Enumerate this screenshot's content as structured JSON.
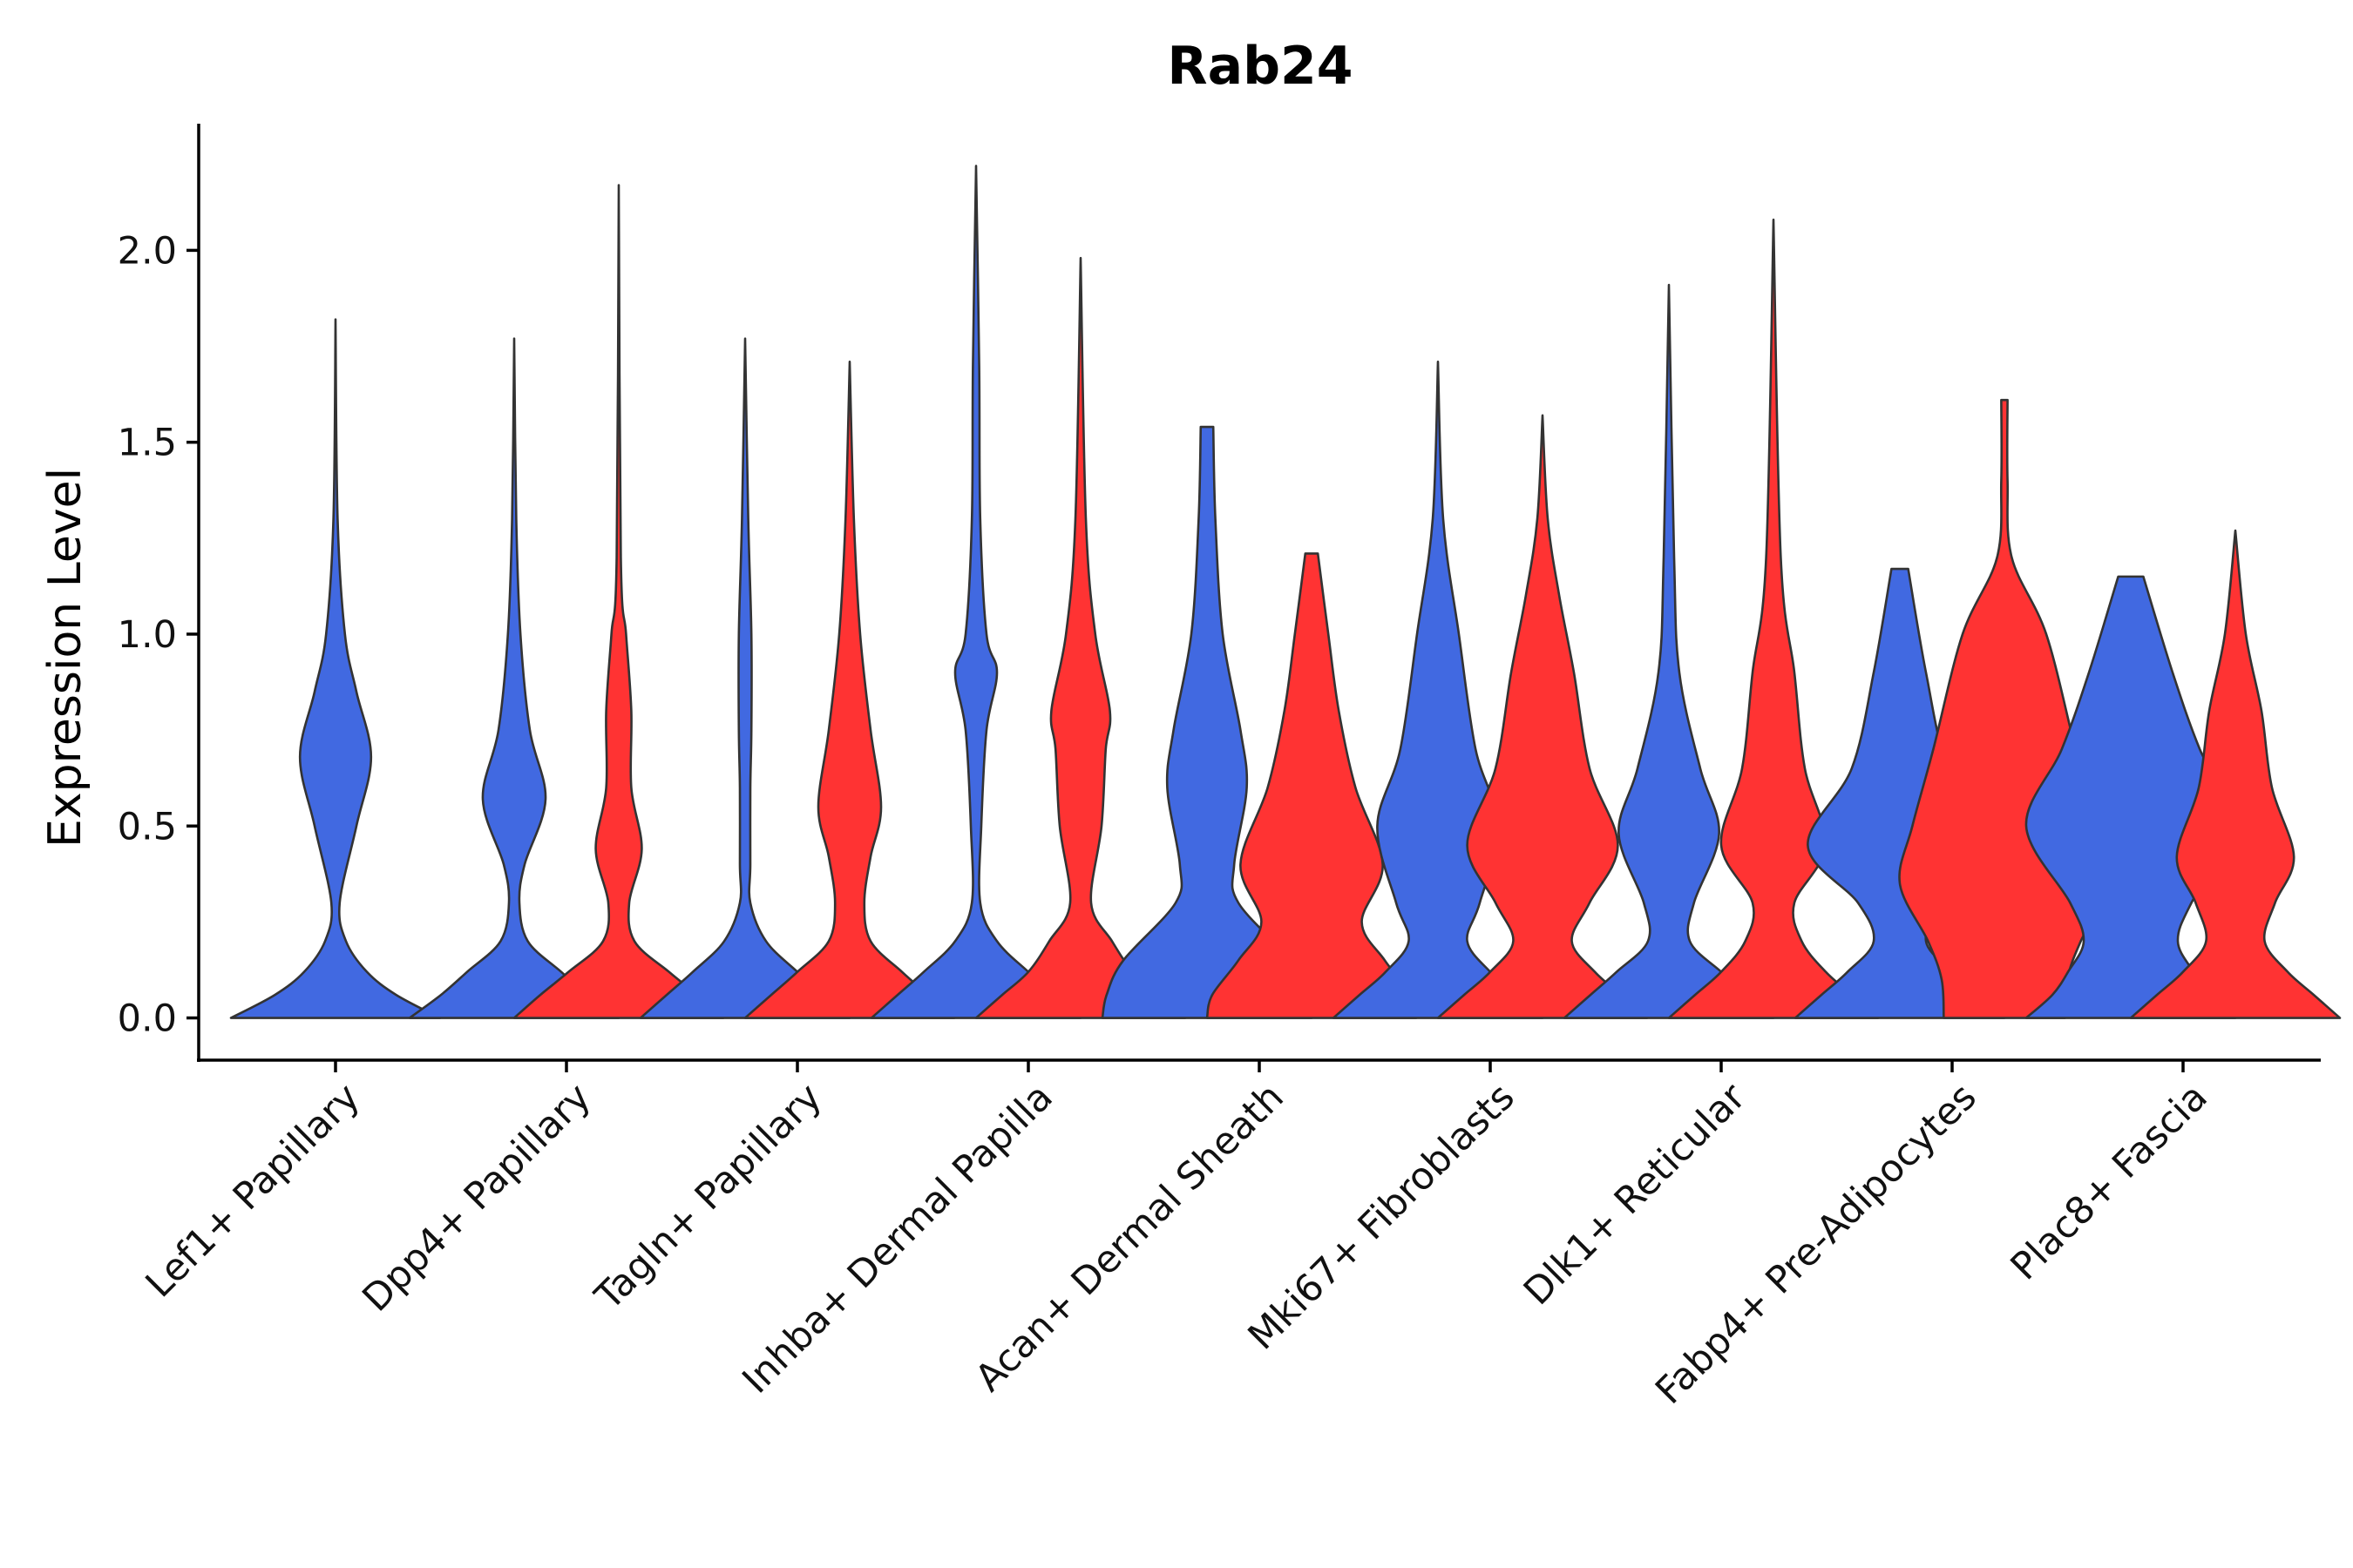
{
  "chart_data": {
    "type": "violin",
    "title": "Rab24",
    "xlabel": "",
    "ylabel": "Expression Level",
    "ylim": [
      -0.11,
      2.33
    ],
    "yticks": [
      0.0,
      0.5,
      1.0,
      1.5,
      2.0
    ],
    "ytick_labels": [
      "0.0",
      "0.5",
      "1.0",
      "1.5",
      "2.0"
    ],
    "categories": [
      "Lef1+ Papillary",
      "Dpp4+ Papillary",
      "Tagln+ Papillary",
      "Inhba+ Dermal Papilla",
      "Acan+ Dermal Sheath",
      "Mki67+ Fibroblasts",
      "Dlk1+ Reticular",
      "Fabp4+ Pre-Adipocytes",
      "Plac8+ Fascia"
    ],
    "groups": [
      {
        "name": "group-1",
        "color": "#4169E1"
      },
      {
        "name": "group-2",
        "color": "#FF3333"
      }
    ],
    "violins": [
      {
        "category": 0,
        "group": 0,
        "max": 1.82,
        "profile": [
          [
            0.0,
            1.0
          ],
          [
            0.06,
            0.58
          ],
          [
            0.12,
            0.3
          ],
          [
            0.2,
            0.1
          ],
          [
            0.3,
            0.04
          ],
          [
            0.5,
            0.2
          ],
          [
            0.68,
            0.34
          ],
          [
            0.85,
            0.2
          ],
          [
            1.0,
            0.09
          ],
          [
            1.3,
            0.02
          ],
          [
            1.82,
            0
          ]
        ]
      },
      {
        "category": 1,
        "group": 0,
        "max": 1.77,
        "profile": [
          [
            0.0,
            1.0
          ],
          [
            0.06,
            0.7
          ],
          [
            0.12,
            0.45
          ],
          [
            0.2,
            0.13
          ],
          [
            0.3,
            0.05
          ],
          [
            0.4,
            0.1
          ],
          [
            0.57,
            0.3
          ],
          [
            0.75,
            0.15
          ],
          [
            1.0,
            0.06
          ],
          [
            1.3,
            0.02
          ],
          [
            1.77,
            0
          ]
        ]
      },
      {
        "category": 1,
        "group": 1,
        "max": 2.17,
        "profile": [
          [
            0.0,
            1.0
          ],
          [
            0.06,
            0.75
          ],
          [
            0.12,
            0.48
          ],
          [
            0.2,
            0.15
          ],
          [
            0.3,
            0.1
          ],
          [
            0.44,
            0.22
          ],
          [
            0.6,
            0.12
          ],
          [
            0.8,
            0.12
          ],
          [
            1.0,
            0.07
          ],
          [
            1.2,
            0.02
          ],
          [
            2.17,
            0
          ]
        ]
      },
      {
        "category": 2,
        "group": 0,
        "max": 1.77,
        "profile": [
          [
            0.0,
            1.0
          ],
          [
            0.06,
            0.75
          ],
          [
            0.12,
            0.5
          ],
          [
            0.2,
            0.2
          ],
          [
            0.3,
            0.05
          ],
          [
            0.4,
            0.05
          ],
          [
            0.6,
            0.05
          ],
          [
            0.75,
            0.06
          ],
          [
            1.0,
            0.06
          ],
          [
            1.3,
            0.03
          ],
          [
            1.77,
            0
          ]
        ]
      },
      {
        "category": 2,
        "group": 1,
        "max": 1.71,
        "profile": [
          [
            0.0,
            1.0
          ],
          [
            0.06,
            0.75
          ],
          [
            0.12,
            0.5
          ],
          [
            0.2,
            0.2
          ],
          [
            0.3,
            0.14
          ],
          [
            0.42,
            0.2
          ],
          [
            0.55,
            0.3
          ],
          [
            0.75,
            0.2
          ],
          [
            1.0,
            0.1
          ],
          [
            1.3,
            0.04
          ],
          [
            1.71,
            0
          ]
        ]
      },
      {
        "category": 3,
        "group": 0,
        "max": 2.22,
        "profile": [
          [
            0.0,
            1.0
          ],
          [
            0.06,
            0.75
          ],
          [
            0.12,
            0.5
          ],
          [
            0.2,
            0.2
          ],
          [
            0.3,
            0.04
          ],
          [
            0.5,
            0.05
          ],
          [
            0.75,
            0.1
          ],
          [
            0.9,
            0.2
          ],
          [
            1.0,
            0.1
          ],
          [
            1.3,
            0.04
          ],
          [
            1.7,
            0.03
          ],
          [
            2.22,
            0
          ]
        ]
      },
      {
        "category": 3,
        "group": 1,
        "max": 1.98,
        "profile": [
          [
            0.0,
            1.0
          ],
          [
            0.06,
            0.75
          ],
          [
            0.12,
            0.5
          ],
          [
            0.2,
            0.3
          ],
          [
            0.3,
            0.1
          ],
          [
            0.5,
            0.2
          ],
          [
            0.7,
            0.24
          ],
          [
            0.8,
            0.28
          ],
          [
            1.0,
            0.14
          ],
          [
            1.3,
            0.05
          ],
          [
            1.98,
            0
          ]
        ]
      },
      {
        "category": 4,
        "group": 0,
        "max": 1.54,
        "profile": [
          [
            0.0,
            1.0
          ],
          [
            0.06,
            0.96
          ],
          [
            0.15,
            0.8
          ],
          [
            0.3,
            0.3
          ],
          [
            0.4,
            0.26
          ],
          [
            0.6,
            0.38
          ],
          [
            0.75,
            0.32
          ],
          [
            1.0,
            0.15
          ],
          [
            1.3,
            0.08
          ],
          [
            1.54,
            0.06
          ]
        ]
      },
      {
        "category": 4,
        "group": 1,
        "max": 1.21,
        "profile": [
          [
            0.0,
            1.0
          ],
          [
            0.06,
            0.95
          ],
          [
            0.15,
            0.7
          ],
          [
            0.25,
            0.48
          ],
          [
            0.4,
            0.68
          ],
          [
            0.6,
            0.42
          ],
          [
            0.8,
            0.26
          ],
          [
            1.0,
            0.16
          ],
          [
            1.21,
            0.06
          ]
        ]
      },
      {
        "category": 5,
        "group": 0,
        "max": 1.71,
        "profile": [
          [
            0.0,
            1.0
          ],
          [
            0.06,
            0.75
          ],
          [
            0.12,
            0.5
          ],
          [
            0.2,
            0.28
          ],
          [
            0.3,
            0.4
          ],
          [
            0.5,
            0.58
          ],
          [
            0.7,
            0.36
          ],
          [
            1.0,
            0.2
          ],
          [
            1.3,
            0.05
          ],
          [
            1.71,
            0
          ]
        ]
      },
      {
        "category": 5,
        "group": 1,
        "max": 1.57,
        "profile": [
          [
            0.0,
            1.0
          ],
          [
            0.06,
            0.75
          ],
          [
            0.12,
            0.5
          ],
          [
            0.2,
            0.28
          ],
          [
            0.3,
            0.45
          ],
          [
            0.45,
            0.72
          ],
          [
            0.65,
            0.45
          ],
          [
            0.9,
            0.3
          ],
          [
            1.1,
            0.16
          ],
          [
            1.3,
            0.05
          ],
          [
            1.57,
            0
          ]
        ]
      },
      {
        "category": 6,
        "group": 0,
        "max": 1.91,
        "profile": [
          [
            0.0,
            1.0
          ],
          [
            0.06,
            0.75
          ],
          [
            0.12,
            0.5
          ],
          [
            0.2,
            0.2
          ],
          [
            0.3,
            0.24
          ],
          [
            0.48,
            0.48
          ],
          [
            0.65,
            0.3
          ],
          [
            0.9,
            0.1
          ],
          [
            1.2,
            0.05
          ],
          [
            1.91,
            0
          ]
        ]
      },
      {
        "category": 6,
        "group": 1,
        "max": 2.08,
        "profile": [
          [
            0.0,
            1.0
          ],
          [
            0.06,
            0.75
          ],
          [
            0.12,
            0.5
          ],
          [
            0.2,
            0.27
          ],
          [
            0.3,
            0.2
          ],
          [
            0.45,
            0.5
          ],
          [
            0.65,
            0.3
          ],
          [
            0.9,
            0.2
          ],
          [
            1.2,
            0.07
          ],
          [
            2.08,
            0
          ]
        ]
      },
      {
        "category": 7,
        "group": 0,
        "max": 1.17,
        "profile": [
          [
            0.0,
            1.0
          ],
          [
            0.06,
            0.75
          ],
          [
            0.12,
            0.5
          ],
          [
            0.2,
            0.25
          ],
          [
            0.3,
            0.4
          ],
          [
            0.45,
            0.88
          ],
          [
            0.65,
            0.46
          ],
          [
            0.9,
            0.25
          ],
          [
            1.17,
            0.08
          ]
        ]
      },
      {
        "category": 7,
        "group": 1,
        "max": 1.61,
        "profile": [
          [
            0.0,
            0.58
          ],
          [
            0.1,
            0.6
          ],
          [
            0.2,
            0.73
          ],
          [
            0.35,
            1.0
          ],
          [
            0.5,
            0.88
          ],
          [
            0.7,
            0.68
          ],
          [
            1.0,
            0.4
          ],
          [
            1.2,
            0.07
          ],
          [
            1.4,
            0.03
          ],
          [
            1.61,
            0.03
          ]
        ]
      },
      {
        "category": 8,
        "group": 0,
        "max": 1.15,
        "profile": [
          [
            0.0,
            1.0
          ],
          [
            0.06,
            0.75
          ],
          [
            0.12,
            0.6
          ],
          [
            0.2,
            0.45
          ],
          [
            0.3,
            0.58
          ],
          [
            0.5,
            1.0
          ],
          [
            0.7,
            0.66
          ],
          [
            0.9,
            0.4
          ],
          [
            1.15,
            0.12
          ]
        ]
      },
      {
        "category": 8,
        "group": 1,
        "max": 1.27,
        "profile": [
          [
            0.0,
            1.0
          ],
          [
            0.06,
            0.75
          ],
          [
            0.12,
            0.5
          ],
          [
            0.2,
            0.28
          ],
          [
            0.3,
            0.38
          ],
          [
            0.42,
            0.56
          ],
          [
            0.6,
            0.35
          ],
          [
            0.8,
            0.25
          ],
          [
            1.0,
            0.1
          ],
          [
            1.27,
            0
          ]
        ]
      }
    ]
  }
}
